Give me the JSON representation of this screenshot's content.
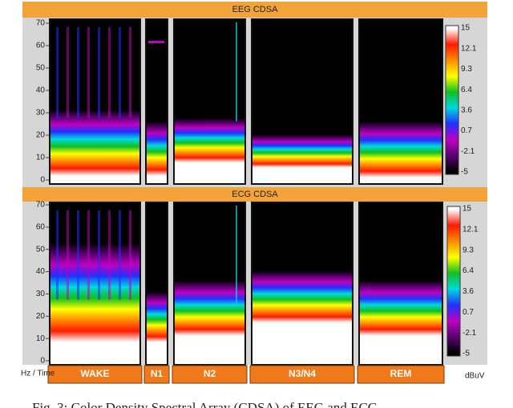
{
  "eeg": {
    "title": "EEG CDSA",
    "yticks": [
      "70",
      "60",
      "50",
      "40",
      "30",
      "20",
      "10",
      "0"
    ],
    "scale": [
      "15",
      "12.1",
      "9.3",
      "6.4",
      "3.6",
      "0.7",
      "-2.1",
      "-5"
    ]
  },
  "ecg": {
    "title": "ECG CDSA",
    "yticks": [
      "70",
      "60",
      "50",
      "40",
      "30",
      "20",
      "10",
      "0"
    ],
    "scale": [
      "15",
      "12.1",
      "9.3",
      "6.4",
      "3.6",
      "0.7",
      "-2.1",
      "-5"
    ]
  },
  "footer": {
    "axis": "Hz / Time",
    "stages": [
      "WAKE",
      "N1",
      "N2",
      "N3/N4",
      "REM"
    ],
    "unit": "dBuV"
  },
  "caption": "Fig. 3: Color Density Spectral Array (CDSA) of EEG and ECG"
}
